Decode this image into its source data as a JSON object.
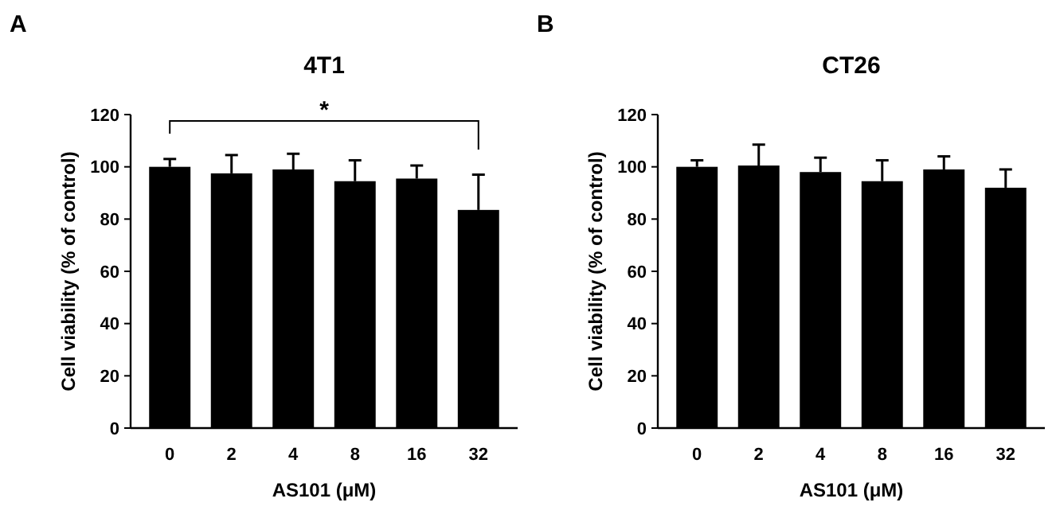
{
  "chart_data": [
    {
      "type": "bar",
      "title": "4T1",
      "xlabel": "AS101 (μM)",
      "ylabel": "Cell viability (% of control)",
      "categories": [
        "0",
        "2",
        "4",
        "8",
        "16",
        "32"
      ],
      "values": [
        100,
        97.5,
        99,
        94.5,
        95.5,
        83.5
      ],
      "errors": [
        [
          100,
          103
        ],
        [
          97.5,
          104.5
        ],
        [
          99,
          105
        ],
        [
          94.5,
          102.5
        ],
        [
          95.5,
          100.5
        ],
        [
          83.5,
          97
        ]
      ],
      "color": "#000000",
      "ylim": [
        0,
        120
      ],
      "yticks": [
        0,
        20,
        40,
        60,
        80,
        100,
        120
      ],
      "annotations": [
        "A",
        "*"
      ]
    },
    {
      "type": "bar",
      "title": "CT26",
      "xlabel": "AS101 (μM)",
      "ylabel": "Cell viability (% of control)",
      "categories": [
        "0",
        "2",
        "4",
        "8",
        "16",
        "32"
      ],
      "values": [
        100,
        100.5,
        98,
        94.5,
        99,
        92
      ],
      "errors": [
        [
          100,
          102.5
        ],
        [
          100.5,
          108.5
        ],
        [
          98,
          103.5
        ],
        [
          94.5,
          102.5
        ],
        [
          99,
          104
        ],
        [
          92,
          99
        ]
      ],
      "color": "#000000",
      "ylim": [
        0,
        120
      ],
      "yticks": [
        0,
        20,
        40,
        60,
        80,
        100,
        120
      ],
      "annotations": [
        "B"
      ]
    }
  ]
}
